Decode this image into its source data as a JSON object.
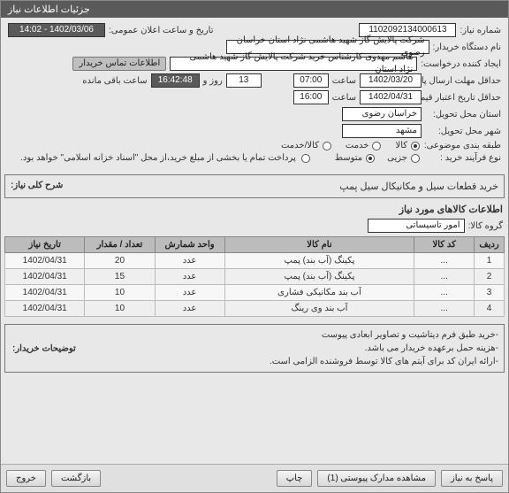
{
  "colors": {
    "window_bg": "#e8e8e8",
    "header_bg": "#5a5a5a",
    "header_fg": "#ffffff",
    "field_bg": "#ffffff",
    "field_dark_bg": "#5a5a5a",
    "chip_bg": "#bfbfbf",
    "table_header_bg": "#bcbcbc",
    "border": "#888888"
  },
  "titlebar": "جزئیات اطلاعات نیاز",
  "labels": {
    "need_no": "شماره نیاز:",
    "announce_dt": "تاریخ و ساعت اعلان عمومی:",
    "buyer_org": "نام دستگاه خریدار:",
    "requester": "ایجاد کننده درخواست:",
    "contact_info": "اطلاعات تماس خریدار",
    "deadline": "حداقل مهلت ارسال پاسخ: تا تاریخ:",
    "saat": "ساعت",
    "rooz_va": "روز و",
    "remain": "ساعت باقی مانده",
    "validity": "حداقل تاریخ اعتبار قیمت: تا تاریخ:",
    "province": "استان محل تحویل:",
    "city": "شهر محل تحویل:",
    "category": "طبقه بندی موضوعی:",
    "buy_type": "نوع فرآیند خرید :",
    "payment_label": "پرداخت تمام یا بخشی از مبلغ خرید،از محل \"اسناد خزانه اسلامی\" خواهد بود.",
    "summary": "شرح کلی نیاز:",
    "items_section": "اطلاعات کالاهای مورد نیاز",
    "goods_group": "گروه کالا:",
    "buyer_notes_label": "توضیحات خریدار:"
  },
  "fields": {
    "need_no": "1102092134000613",
    "announce_dt": "1402/03/06 - 14:02",
    "buyer_org": "شرکت پالایش گاز شهید هاشمی نژاد   استان خراسان رضوی",
    "requester": "هاشم مهدوی کارشناس خرید شرکت پالایش گاز شهید هاشمی نژاد   استان",
    "deadline_date": "1402/03/20",
    "deadline_time": "07:00",
    "deadline_days": "13",
    "deadline_remain": "16:42:48",
    "validity_date": "1402/04/31",
    "validity_time": "16:00",
    "province": "خراسان رضوی",
    "city": "مشهد",
    "goods_group": "امور تاسیساتی"
  },
  "category_options": {
    "kala": "کالا",
    "khadamat": "خدمت",
    "kalakhadamat": "کالا/خدمت",
    "selected": "kala"
  },
  "buy_options": {
    "jozi": "جزیی",
    "motavaset": "متوسط",
    "selected": "motavaset"
  },
  "summary_text": "خرید قطعات سیل و مکانیکال سیل پمپ",
  "table": {
    "columns": [
      "ردیف",
      "کد کالا",
      "نام کالا",
      "واحد شمارش",
      "تعداد / مقدار",
      "تاریخ نیاز"
    ],
    "col_widths": [
      "6%",
      "12%",
      "38%",
      "14%",
      "14%",
      "16%"
    ],
    "rows": [
      [
        "1",
        "...",
        "پکینگ (آب بند) پمپ",
        "عدد",
        "20",
        "1402/04/31"
      ],
      [
        "2",
        "...",
        "پکینگ (آب بند) پمپ",
        "عدد",
        "15",
        "1402/04/31"
      ],
      [
        "3",
        "...",
        "آب بند مکانیکی فشاری",
        "عدد",
        "10",
        "1402/04/31"
      ],
      [
        "4",
        "...",
        "آب بند وی رینگ",
        "عدد",
        "10",
        "1402/04/31"
      ]
    ]
  },
  "notes": [
    "-خرید طبق فرم دیتاشیت و تصاویر ابعادی پیوست",
    "-هزینه حمل برعهده خریدار می باشد.",
    "-ارائه ایران کد برای آیتم های کالا توسط فروشنده الزامی است."
  ],
  "buttons": {
    "respond": "پاسخ به نیاز",
    "attachments": "مشاهده مدارک پیوستی (1)",
    "print": "چاپ",
    "back": "بازگشت",
    "exit": "خروج"
  }
}
